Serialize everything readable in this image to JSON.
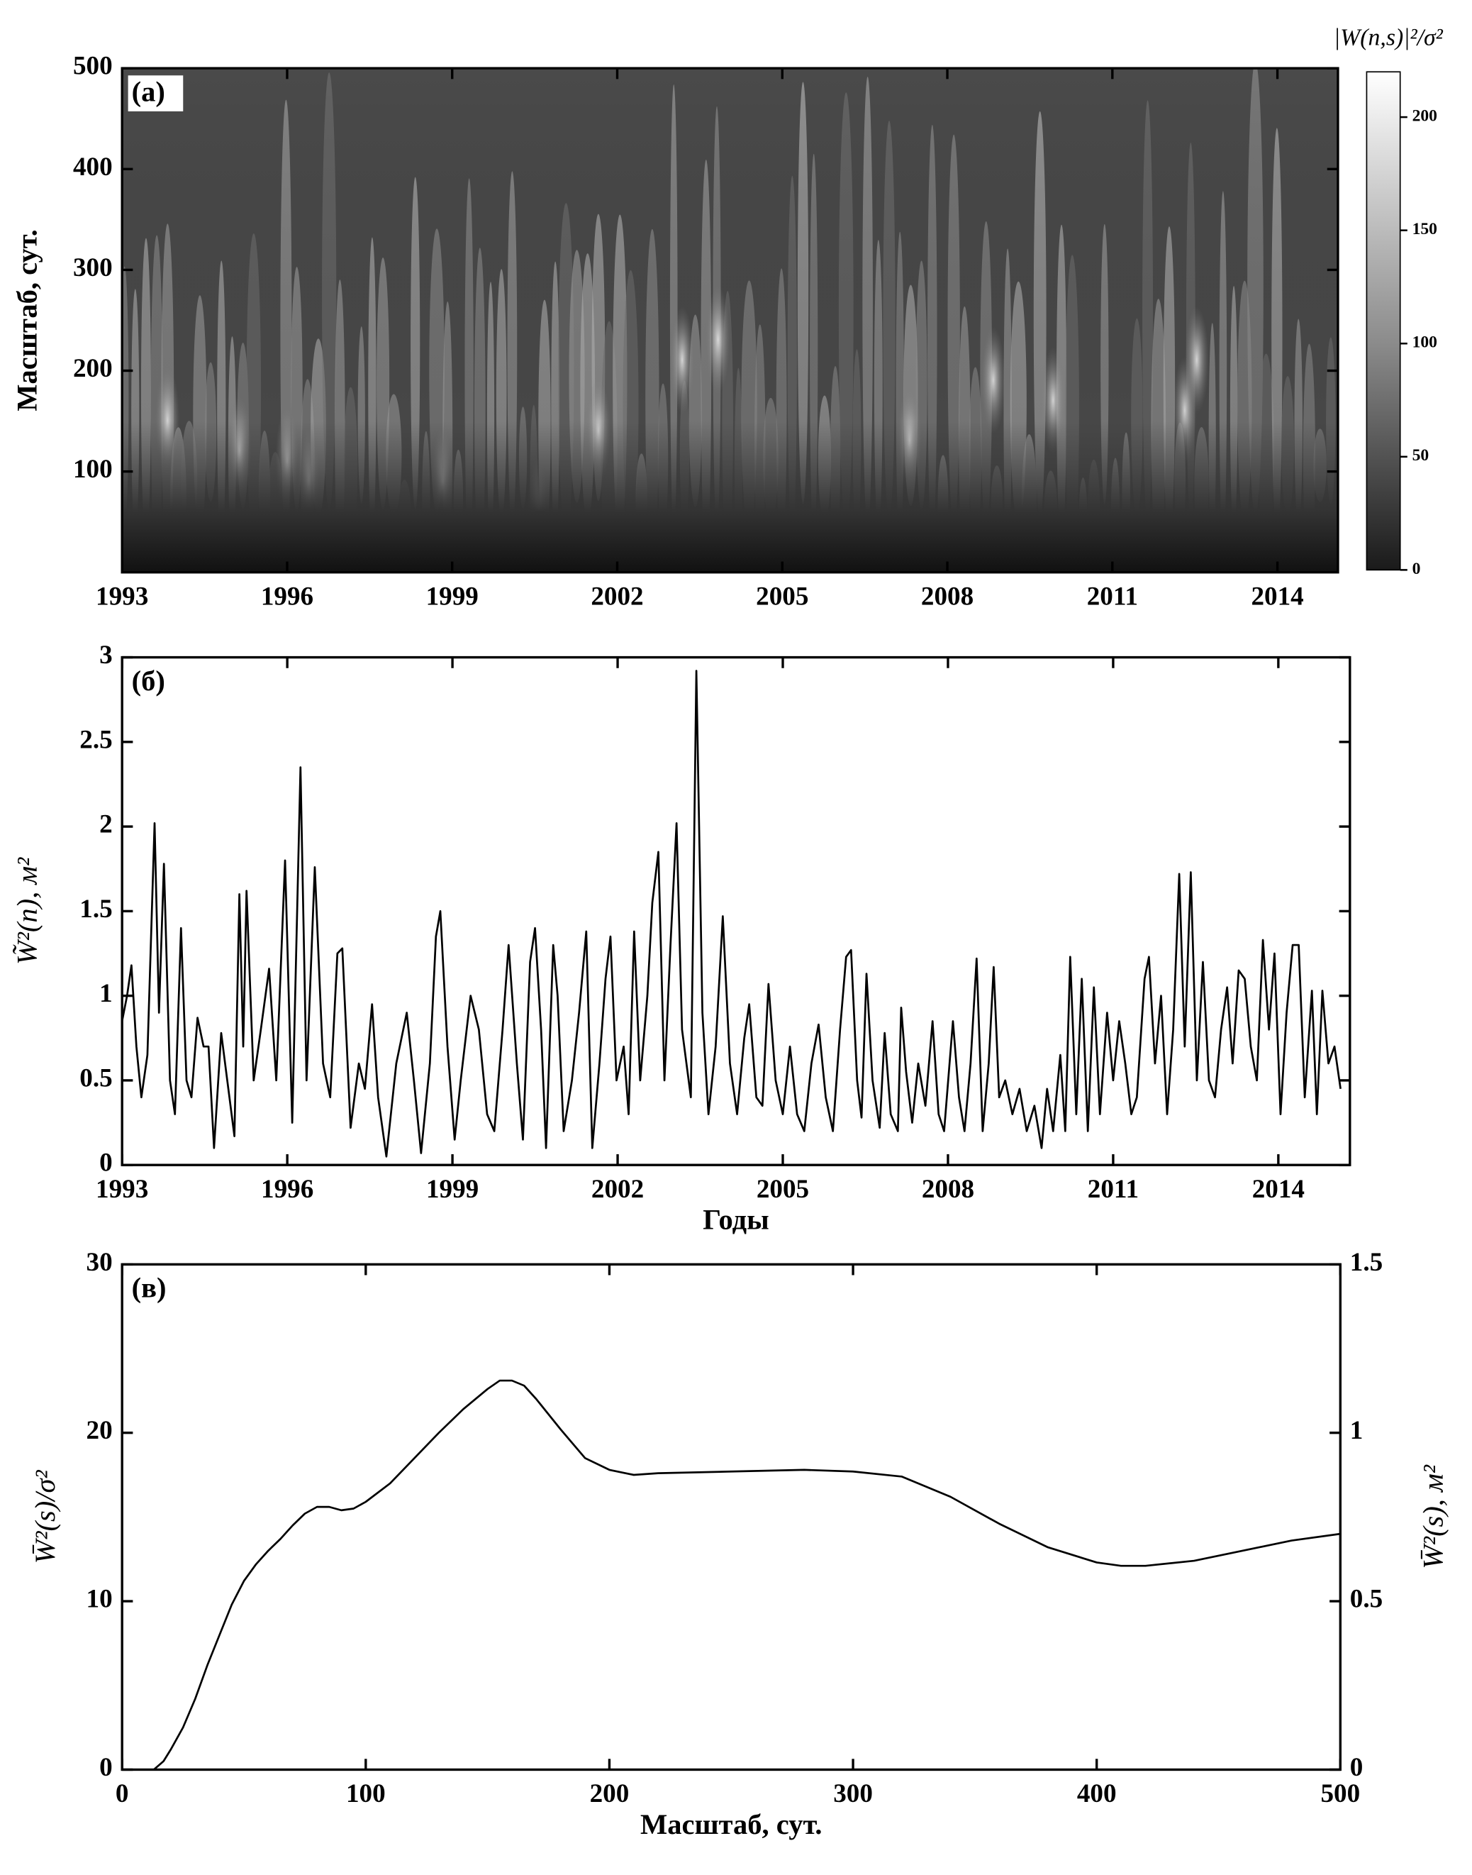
{
  "chart_data": [
    {
      "type": "heatmap",
      "panel": "(а)",
      "y_label": "Масштаб, сут.",
      "xlim": [
        1993,
        2015.1
      ],
      "xticks": [
        1993,
        1996,
        1999,
        2002,
        2005,
        2008,
        2011,
        2014
      ],
      "ylim": [
        0,
        500
      ],
      "yticks": [
        100,
        200,
        300,
        400,
        500
      ],
      "colorbar": {
        "label": "|W(n,s)|²/σ²",
        "clim": [
          0,
          220
        ],
        "ticks": [
          0,
          50,
          100,
          150,
          200
        ]
      }
    },
    {
      "type": "line",
      "panel": "(б)",
      "y_label": "W̃²(n), м²",
      "x_label": "Годы",
      "xlim": [
        1993,
        2015.3
      ],
      "xticks": [
        1993,
        1996,
        1999,
        2002,
        2005,
        2008,
        2011,
        2014
      ],
      "ylim": [
        0,
        3
      ],
      "yticks": [
        0,
        0.5,
        1,
        1.5,
        2,
        2.5,
        3
      ],
      "color": "#000000",
      "x": [
        1993.0,
        1993.09,
        1993.17,
        1993.26,
        1993.35,
        1993.46,
        1993.59,
        1993.67,
        1993.76,
        1993.87,
        1993.96,
        1994.07,
        1994.17,
        1994.26,
        1994.37,
        1994.48,
        1994.57,
        1994.67,
        1994.8,
        1994.91,
        1995.04,
        1995.13,
        1995.2,
        1995.26,
        1995.39,
        1995.52,
        1995.67,
        1995.8,
        1995.96,
        1996.09,
        1996.24,
        1996.35,
        1996.5,
        1996.65,
        1996.78,
        1996.91,
        1997.0,
        1997.15,
        1997.3,
        1997.41,
        1997.54,
        1997.65,
        1997.8,
        1997.98,
        1998.17,
        1998.3,
        1998.43,
        1998.59,
        1998.7,
        1998.78,
        1998.91,
        1999.04,
        1999.15,
        1999.33,
        1999.48,
        1999.63,
        1999.76,
        1999.91,
        2000.02,
        2000.17,
        2000.28,
        2000.41,
        2000.5,
        2000.61,
        2000.7,
        2000.83,
        2000.91,
        2001.02,
        2001.17,
        2001.3,
        2001.43,
        2001.54,
        2001.67,
        2001.78,
        2001.87,
        2001.98,
        2002.11,
        2002.2,
        2002.3,
        2002.41,
        2002.54,
        2002.63,
        2002.74,
        2002.85,
        2002.96,
        2003.07,
        2003.17,
        2003.33,
        2003.43,
        2003.54,
        2003.65,
        2003.78,
        2003.91,
        2004.04,
        2004.17,
        2004.3,
        2004.39,
        2004.52,
        2004.63,
        2004.74,
        2004.87,
        2005.0,
        2005.13,
        2005.26,
        2005.39,
        2005.52,
        2005.65,
        2005.78,
        2005.91,
        2006.04,
        2006.15,
        2006.24,
        2006.35,
        2006.43,
        2006.52,
        2006.63,
        2006.76,
        2006.85,
        2006.96,
        2007.09,
        2007.15,
        2007.24,
        2007.35,
        2007.46,
        2007.59,
        2007.72,
        2007.83,
        2007.93,
        2008.09,
        2008.2,
        2008.3,
        2008.41,
        2008.52,
        2008.63,
        2008.74,
        2008.83,
        2008.93,
        2009.04,
        2009.17,
        2009.3,
        2009.43,
        2009.57,
        2009.7,
        2009.8,
        2009.91,
        2010.04,
        2010.13,
        2010.22,
        2010.33,
        2010.43,
        2010.54,
        2010.65,
        2010.76,
        2010.89,
        2011.0,
        2011.11,
        2011.22,
        2011.33,
        2011.43,
        2011.57,
        2011.65,
        2011.76,
        2011.87,
        2011.98,
        2012.09,
        2012.2,
        2012.3,
        2012.41,
        2012.52,
        2012.63,
        2012.74,
        2012.85,
        2012.96,
        2013.07,
        2013.17,
        2013.28,
        2013.39,
        2013.5,
        2013.61,
        2013.72,
        2013.83,
        2013.93,
        2014.04,
        2014.15,
        2014.26,
        2014.37,
        2014.48,
        2014.61,
        2014.7,
        2014.8,
        2014.91,
        2015.02,
        2015.13
      ],
      "values": [
        0.85,
        1.0,
        1.18,
        0.7,
        0.4,
        0.65,
        2.02,
        0.9,
        1.78,
        0.5,
        0.3,
        1.4,
        0.5,
        0.4,
        0.87,
        0.7,
        0.7,
        0.1,
        0.78,
        0.5,
        0.17,
        1.6,
        0.7,
        1.62,
        0.5,
        0.8,
        1.16,
        0.5,
        1.8,
        0.25,
        2.35,
        0.5,
        1.76,
        0.6,
        0.4,
        1.25,
        1.28,
        0.22,
        0.6,
        0.45,
        0.95,
        0.4,
        0.05,
        0.6,
        0.9,
        0.5,
        0.07,
        0.6,
        1.35,
        1.5,
        0.7,
        0.15,
        0.5,
        1.0,
        0.8,
        0.3,
        0.2,
        0.8,
        1.3,
        0.6,
        0.15,
        1.2,
        1.4,
        0.8,
        0.1,
        1.3,
        1.0,
        0.2,
        0.5,
        0.9,
        1.38,
        0.1,
        0.6,
        1.1,
        1.35,
        0.5,
        0.7,
        0.3,
        1.38,
        0.5,
        1.0,
        1.55,
        1.85,
        0.5,
        1.3,
        2.02,
        0.8,
        0.4,
        2.92,
        0.9,
        0.3,
        0.7,
        1.47,
        0.6,
        0.3,
        0.75,
        0.95,
        0.4,
        0.35,
        1.07,
        0.5,
        0.3,
        0.7,
        0.3,
        0.2,
        0.6,
        0.83,
        0.4,
        0.2,
        0.8,
        1.23,
        1.27,
        0.5,
        0.28,
        1.13,
        0.5,
        0.22,
        0.78,
        0.3,
        0.2,
        0.93,
        0.55,
        0.25,
        0.6,
        0.35,
        0.85,
        0.3,
        0.2,
        0.85,
        0.4,
        0.2,
        0.6,
        1.22,
        0.2,
        0.6,
        1.17,
        0.4,
        0.5,
        0.3,
        0.45,
        0.2,
        0.35,
        0.1,
        0.45,
        0.2,
        0.65,
        0.2,
        1.23,
        0.3,
        1.1,
        0.2,
        1.05,
        0.3,
        0.9,
        0.5,
        0.85,
        0.6,
        0.3,
        0.4,
        1.1,
        1.23,
        0.6,
        1.0,
        0.3,
        0.8,
        1.72,
        0.7,
        1.73,
        0.5,
        1.2,
        0.5,
        0.4,
        0.8,
        1.05,
        0.6,
        1.15,
        1.1,
        0.7,
        0.5,
        1.33,
        0.8,
        1.25,
        0.3,
        0.9,
        1.3,
        1.3,
        0.4,
        1.03,
        0.3,
        1.03,
        0.6,
        0.7,
        0.45
      ]
    },
    {
      "type": "line",
      "panel": "(в)",
      "y_label": "W̄²(s)/σ²",
      "y2_label": "W̄²(s), м²",
      "x_label": "Масштаб, сут.",
      "xlim": [
        0,
        500
      ],
      "xticks": [
        0,
        100,
        200,
        300,
        400,
        500
      ],
      "ylim": [
        0,
        30
      ],
      "yticks": [
        0,
        10,
        20,
        30
      ],
      "y2lim": [
        0,
        1.5
      ],
      "y2ticks": [
        0,
        0.5,
        1,
        1.5
      ],
      "color": "#000000",
      "x": [
        13,
        17,
        20,
        25,
        30,
        35,
        40,
        45,
        50,
        55,
        60,
        65,
        70,
        75,
        80,
        85,
        90,
        95,
        100,
        110,
        120,
        130,
        140,
        150,
        155,
        160,
        165,
        170,
        180,
        190,
        200,
        210,
        220,
        250,
        280,
        300,
        320,
        340,
        360,
        380,
        400,
        410,
        420,
        440,
        460,
        480,
        500
      ],
      "values": [
        0,
        0.5,
        1.2,
        2.5,
        4.2,
        6.2,
        8.0,
        9.8,
        11.2,
        12.2,
        13.0,
        13.7,
        14.5,
        15.2,
        15.6,
        15.6,
        15.4,
        15.5,
        15.9,
        17.0,
        18.5,
        20.0,
        21.4,
        22.6,
        23.1,
        23.1,
        22.8,
        22.0,
        20.2,
        18.5,
        17.8,
        17.5,
        17.6,
        17.7,
        17.8,
        17.7,
        17.4,
        16.2,
        14.6,
        13.2,
        12.3,
        12.1,
        12.1,
        12.4,
        13.0,
        13.6,
        14.0
      ]
    }
  ]
}
